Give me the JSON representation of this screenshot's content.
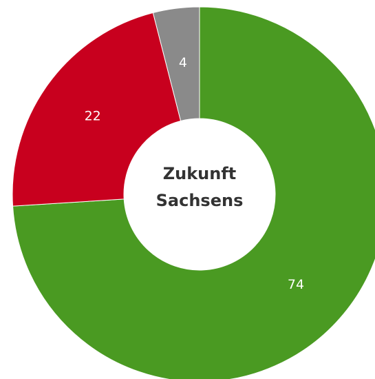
{
  "chart_data": {
    "type": "donut",
    "title": [
      "Zukunft",
      "Sachsens"
    ],
    "values": [
      74,
      22,
      4
    ],
    "colors": [
      "#4a9a22",
      "#c8001e",
      "#8a8a8a"
    ]
  }
}
